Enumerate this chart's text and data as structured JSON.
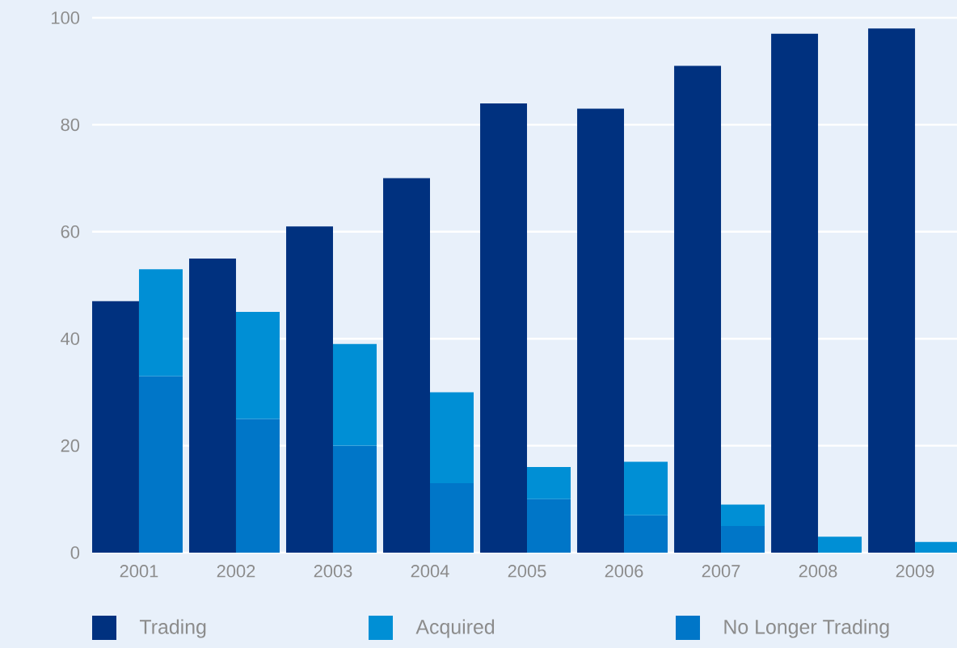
{
  "chart_data": {
    "type": "bar",
    "categories": [
      "2001",
      "2002",
      "2003",
      "2004",
      "2005",
      "2006",
      "2007",
      "2008",
      "2009"
    ],
    "series": [
      {
        "name": "Trading",
        "color": "#00317f",
        "values": [
          47,
          55,
          61,
          70,
          84,
          83,
          91,
          97,
          98
        ]
      },
      {
        "name": "Acquired",
        "color": "#008fd5",
        "values": [
          20,
          20,
          19,
          17,
          6,
          10,
          4,
          3,
          2
        ],
        "base": [
          33,
          25,
          20,
          13,
          10,
          7,
          5,
          0,
          0
        ]
      },
      {
        "name": "No Longer Trading",
        "color": "#0076c8",
        "values": [
          33,
          25,
          20,
          13,
          10,
          7,
          5,
          0,
          0
        ]
      }
    ],
    "ylim": [
      0,
      100
    ],
    "yticks": [
      0,
      20,
      40,
      60,
      80,
      100
    ],
    "grid": "y",
    "legend": "bottom"
  }
}
